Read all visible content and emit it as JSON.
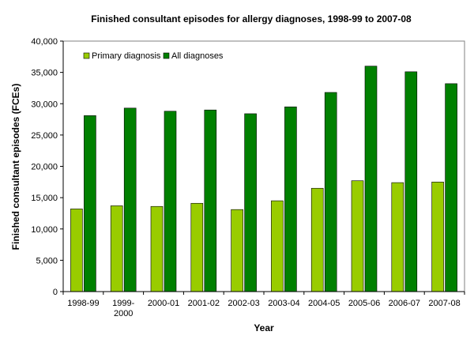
{
  "chart_data": {
    "type": "bar",
    "title": "Finished consultant episodes for allergy diagnoses, 1998-99 to 2007-08",
    "xlabel": "Year",
    "ylabel": "Finished consultant episodes (FCEs)",
    "ylim": [
      0,
      40000
    ],
    "yticks": [
      0,
      5000,
      10000,
      15000,
      20000,
      25000,
      30000,
      35000,
      40000
    ],
    "ytick_labels": [
      "0",
      "5,000",
      "10,000",
      "15,000",
      "20,000",
      "25,000",
      "30,000",
      "35,000",
      "40,000"
    ],
    "categories": [
      "1998-99",
      "1999-2000",
      "2000-01",
      "2001-02",
      "2002-03",
      "2003-04",
      "2004-05",
      "2005-06",
      "2006-07",
      "2007-08"
    ],
    "category_lines": [
      [
        "1998-99"
      ],
      [
        "1999-",
        "2000"
      ],
      [
        "2000-01"
      ],
      [
        "2001-02"
      ],
      [
        "2002-03"
      ],
      [
        "2003-04"
      ],
      [
        "2004-05"
      ],
      [
        "2005-06"
      ],
      [
        "2006-07"
      ],
      [
        "2007-08"
      ]
    ],
    "legend_position": "top-left",
    "grid": false,
    "series": [
      {
        "name": "Primary diagnosis",
        "color": "#99cc00",
        "values": [
          13200,
          13700,
          13600,
          14100,
          13100,
          14500,
          16500,
          17700,
          17400,
          17500
        ]
      },
      {
        "name": "All diagnoses",
        "color": "#008000",
        "values": [
          28100,
          29300,
          28800,
          29000,
          28400,
          29500,
          31800,
          36000,
          35100,
          33200
        ]
      }
    ]
  }
}
